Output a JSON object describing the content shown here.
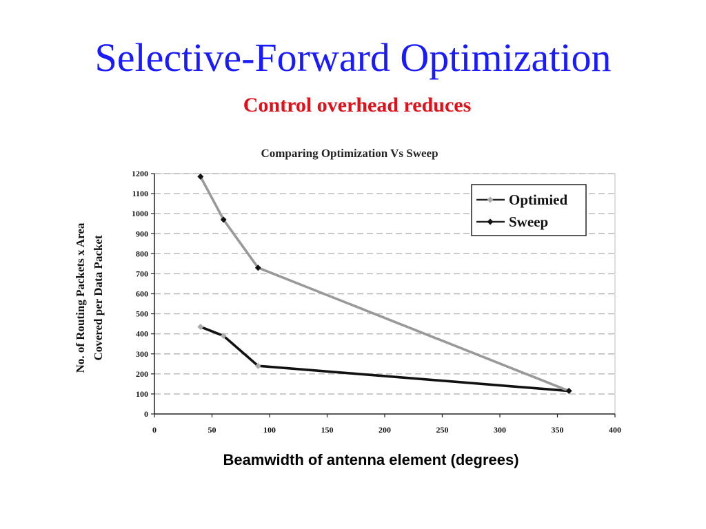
{
  "slide": {
    "title": "Selective-Forward Optimization",
    "subtitle": "Control overhead reduces",
    "x_axis_caption": "Beamwidth of antenna element (degrees)"
  },
  "chart_data": {
    "type": "line",
    "title": "Comparing Optimization Vs Sweep",
    "xlabel": "Beamwidth of antenna element (degrees)",
    "ylabel_lines": [
      "No. of Routing Packets x Area",
      "Covered per Data Packet"
    ],
    "xlim": [
      0,
      400
    ],
    "ylim": [
      0,
      1200
    ],
    "xticks": [
      0,
      50,
      100,
      150,
      200,
      250,
      300,
      350,
      400
    ],
    "yticks": [
      0,
      100,
      200,
      300,
      400,
      500,
      600,
      700,
      800,
      900,
      1000,
      1100,
      1200
    ],
    "grid": true,
    "legend_position": "top-right",
    "series": [
      {
        "name": "Optimied",
        "x": [
          40,
          60,
          90,
          360
        ],
        "y": [
          435,
          390,
          240,
          115
        ],
        "line_color": "#111111",
        "marker_color": "#aaaaaa"
      },
      {
        "name": "Sweep",
        "x": [
          40,
          60,
          90,
          360
        ],
        "y": [
          1185,
          970,
          730,
          115
        ],
        "line_color": "#999999",
        "marker_color": "#111111"
      }
    ]
  }
}
